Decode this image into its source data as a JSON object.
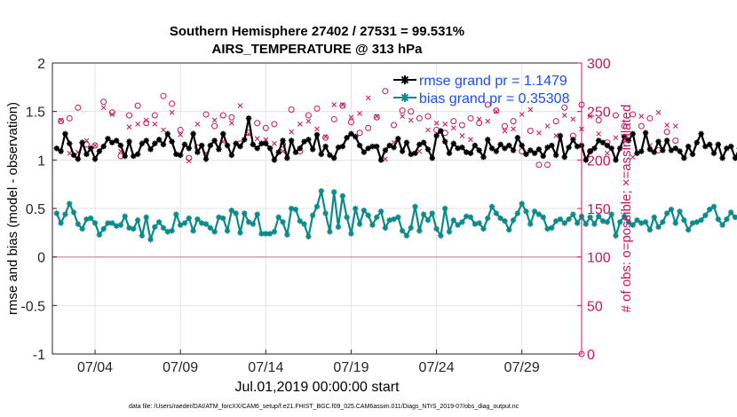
{
  "chart_data": {
    "type": "line",
    "title": "Southern Hemisphere 27402 / 27531 = 99.531%",
    "subtitle": "AIRS_TEMPERATURE @ 313 hPa",
    "xlabel": "Jul.01,2019 00:00:00 start",
    "ylabel": "rmse and bias (model - observation)",
    "y2label": "# of obs: o=possible; ×=assimilated",
    "xlim": [
      1.5,
      32.5
    ],
    "ylim": [
      -1,
      2
    ],
    "y2lim": [
      0,
      300
    ],
    "x_ticks": [
      4,
      9,
      14,
      19,
      24,
      29
    ],
    "x_tick_labels": [
      "07/04",
      "07/09",
      "07/14",
      "07/19",
      "07/24",
      "07/29"
    ],
    "y_ticks": [
      -1,
      -0.5,
      0,
      0.5,
      1,
      1.5,
      2
    ],
    "y_tick_labels": [
      "-1",
      "-0.5",
      "0",
      "0.5",
      "1",
      "1.5",
      "2"
    ],
    "y2_ticks": [
      0,
      50,
      100,
      150,
      200,
      250,
      300
    ],
    "y2_tick_labels": [
      "0",
      "50",
      "100",
      "150",
      "200",
      "250",
      "300"
    ],
    "grid": true,
    "legend_position": "top-right",
    "footnote": "data file: /Users/raeder/DAI/ATM_forcXX/CAM6_setup/f.e21.FHIST_BGC.f09_025.CAM6assim.011/Diags_NTrS_2019-07/obs_diag_output.nc",
    "x_start": 1.75,
    "x_step": 0.25,
    "series": [
      {
        "name": "rmse grand pr = 1.1479",
        "color": "#000000",
        "marker": "star",
        "axis": "left",
        "values": [
          1.12,
          1.09,
          1.27,
          1.17,
          1.05,
          1.01,
          1.18,
          1.06,
          1.12,
          1.01,
          1.09,
          1.14,
          1.22,
          1.18,
          1.2,
          1.15,
          1.04,
          1.19,
          1.04,
          1.06,
          1.17,
          1.2,
          1.11,
          1.17,
          1.21,
          1.16,
          1.27,
          1.19,
          1.06,
          1.05,
          1.16,
          1.12,
          1.27,
          1.08,
          1.15,
          1.01,
          1.15,
          1.2,
          1.11,
          1.27,
          1.15,
          1.05,
          1.17,
          1.14,
          1.21,
          1.43,
          1.16,
          1.12,
          1.17,
          1.17,
          1.12,
          1.0,
          1.08,
          1.2,
          1.02,
          1.2,
          1.08,
          1.12,
          1.19,
          1.21,
          1.11,
          1.26,
          1.06,
          1.14,
          1.05,
          1.02,
          1.13,
          1.14,
          1.23,
          1.27,
          1.24,
          1.15,
          1.08,
          1.12,
          1.14,
          1.14,
          1.0,
          1.1,
          1.15,
          1.13,
          1.22,
          1.09,
          1.18,
          1.06,
          1.07,
          1.16,
          1.18,
          1.11,
          1.02,
          1.25,
          1.3,
          1.19,
          1.07,
          1.17,
          1.12,
          1.13,
          1.08,
          1.07,
          1.15,
          1.1,
          1.03,
          1.21,
          1.12,
          1.09,
          1.16,
          1.12,
          1.15,
          1.1,
          1.23,
          1.15,
          1.06,
          1.1,
          1.07,
          1.11,
          1.04,
          1.13,
          1.15,
          1.05,
          1.25,
          1.03,
          1.13,
          1.21,
          1.14,
          1.15,
          1.0,
          1.09,
          1.12,
          1.2,
          1.18,
          1.15,
          1.12,
          1.0,
          1.12,
          1.24,
          1.2,
          1.27,
          1.07,
          1.09,
          1.28,
          1.11,
          1.08,
          1.19,
          1.1,
          1.2,
          1.1,
          1.12,
          1.09,
          1.02,
          1.14,
          1.06,
          1.18,
          1.27,
          1.14,
          1.16,
          1.07,
          1.16,
          1.02,
          1.12,
          1.14,
          1.02,
          1.12,
          1.13,
          1.14,
          1.0,
          1.05,
          1.3,
          1.23,
          1.3,
          1.19,
          1.12,
          1.14,
          1.24,
          1.1,
          1.09,
          1.08,
          1.16,
          1.1,
          1.15,
          1.1,
          1.03,
          1.07,
          1.11,
          1.09,
          1.12,
          1.07,
          1.06,
          0.96,
          0.95
        ]
      },
      {
        "name": "bias grand pr = 0.35308",
        "color": "#0a8a8a",
        "marker": "star",
        "axis": "left",
        "values": [
          0.45,
          0.35,
          0.44,
          0.55,
          0.46,
          0.34,
          0.29,
          0.39,
          0.4,
          0.35,
          0.23,
          0.29,
          0.35,
          0.35,
          0.32,
          0.33,
          0.42,
          0.3,
          0.29,
          0.38,
          0.22,
          0.41,
          0.18,
          0.31,
          0.36,
          0.3,
          0.26,
          0.27,
          0.44,
          0.33,
          0.35,
          0.4,
          0.27,
          0.39,
          0.35,
          0.34,
          0.3,
          0.26,
          0.41,
          0.4,
          0.27,
          0.48,
          0.45,
          0.25,
          0.45,
          0.36,
          0.34,
          0.44,
          0.24,
          0.24,
          0.24,
          0.26,
          0.41,
          0.36,
          0.23,
          0.5,
          0.49,
          0.37,
          0.34,
          0.21,
          0.43,
          0.52,
          0.68,
          0.45,
          0.26,
          0.67,
          0.31,
          0.63,
          0.41,
          0.24,
          0.5,
          0.34,
          0.48,
          0.43,
          0.33,
          0.41,
          0.47,
          0.3,
          0.38,
          0.39,
          0.41,
          0.27,
          0.22,
          0.3,
          0.52,
          0.27,
          0.44,
          0.38,
          0.45,
          0.29,
          0.22,
          0.5,
          0.26,
          0.38,
          0.33,
          0.36,
          0.42,
          0.41,
          0.34,
          0.35,
          0.29,
          0.4,
          0.52,
          0.45,
          0.4,
          0.37,
          0.28,
          0.38,
          0.45,
          0.55,
          0.47,
          0.34,
          0.47,
          0.44,
          0.41,
          0.29,
          0.3,
          0.37,
          0.39,
          0.35,
          0.39,
          0.44,
          0.35,
          0.42,
          0.34,
          0.41,
          0.34,
          0.42,
          0.37,
          0.36,
          0.44,
          0.22,
          0.36,
          0.42,
          0.36,
          0.33,
          0.38,
          0.35,
          0.36,
          0.28,
          0.41,
          0.31,
          0.36,
          0.45,
          0.49,
          0.35,
          0.47,
          0.38,
          0.28,
          0.35,
          0.36,
          0.38,
          0.43,
          0.49,
          0.52,
          0.39,
          0.33,
          0.39,
          0.46,
          0.41,
          0.39,
          0.33,
          0.2,
          0.26,
          0.29,
          0.37,
          0.45,
          0.4,
          0.3,
          0.44,
          0.24,
          0.21,
          0.27,
          0.34,
          0.35,
          0.36,
          0.34,
          0.45,
          0.32,
          0.4,
          0.35,
          0.36,
          0.32,
          0.29,
          0.33,
          0.5,
          0.28,
          0.36,
          0.46,
          0.32,
          0.4,
          0.44,
          0.49,
          0.4,
          0.29,
          0.35,
          0.43,
          0.43,
          0.38,
          0.33,
          0.32,
          0.32,
          0.31,
          0.31
        ]
      }
    ],
    "obs_points": {
      "color": "#d0105a",
      "axis": "right",
      "x_start": 2,
      "x_step": 0.5,
      "possible": [
        240,
        243,
        254,
        216,
        215,
        260,
        249,
        204,
        246,
        256,
        238,
        246,
        266,
        258,
        231,
        202,
        213,
        247,
        235,
        246,
        244,
        217,
        228,
        238,
        233,
        237,
        216,
        252,
        209,
        246,
        253,
        223,
        242,
        256,
        239,
        228,
        233,
        244,
        271,
        236,
        251,
        250,
        243,
        245,
        231,
        228,
        240,
        236,
        243,
        238,
        257,
        251,
        235,
        240,
        209,
        230,
        195,
        195,
        240,
        254,
        225,
        257,
        209,
        241,
        218,
        246,
        235,
        247,
        235,
        243,
        210,
        229,
        220
      ],
      "assimilated": [
        241,
        207,
        208,
        220,
        215,
        254,
        247,
        209,
        234,
        237,
        241,
        237,
        231,
        249,
        226,
        199,
        237,
        207,
        241,
        219,
        238,
        256,
        227,
        222,
        221,
        217,
        209,
        229,
        237,
        240,
        232,
        224,
        257,
        257,
        244,
        248,
        264,
        245,
        201,
        218,
        245,
        241,
        209,
        231,
        238,
        237,
        233,
        225,
        221,
        242,
        240,
        250,
        230,
        232,
        247,
        252,
        228,
        235,
        225,
        246,
        242,
        232,
        245,
        227,
        207,
        223,
        222,
        203,
        245,
        215,
        249,
        236,
        235
      ]
    }
  }
}
